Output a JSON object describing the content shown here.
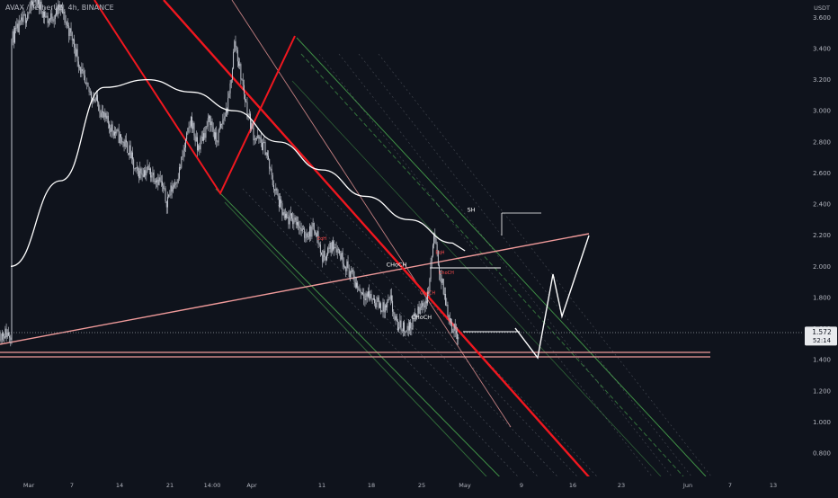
{
  "header": {
    "symbol_line": "AVAX / TetherUS, 4h, BINANCE"
  },
  "colors": {
    "background": "#0f131c",
    "candle": "#c9cdd6",
    "sma": "#ffffff",
    "red_trendline": "#f0171f",
    "pink_line": "#ef9a9a",
    "green_channel": "#4caf50",
    "axis_text": "#b2b5be",
    "price_tag_bg": "#e8eaed",
    "price_tag_text": "#131722"
  },
  "chart_data": {
    "type": "candlestick",
    "title": "AVAX / TetherUS, 4h, BINANCE",
    "currency": "USDT",
    "ylim": [
      0.65,
      3.72
    ],
    "y_ticks": [
      "3.600",
      "3.400",
      "3.200",
      "3.000",
      "2.800",
      "2.600",
      "2.400",
      "2.200",
      "2.000",
      "1.800",
      "1.600",
      "1.400",
      "1.200",
      "1.000",
      "0.800"
    ],
    "x_ticks": [
      "Mar",
      "7",
      "14",
      "21",
      "14:00",
      "Apr",
      "11",
      "18",
      "25",
      "May",
      "9",
      "16",
      "23",
      "Jun",
      "7",
      "13"
    ],
    "last_price": "1.572",
    "countdown": "52:14",
    "grid": false,
    "price_path": [
      [
        "Feb 28",
        3.45
      ],
      [
        "Mar 1",
        3.58
      ],
      [
        "Mar 3",
        3.72
      ],
      [
        "Mar 5",
        3.58
      ],
      [
        "Mar 7",
        3.66
      ],
      [
        "Mar 9",
        3.45
      ],
      [
        "Mar 11",
        3.15
      ],
      [
        "Mar 13",
        3.05
      ],
      [
        "Mar 14",
        2.95
      ],
      [
        "Mar 16",
        2.85
      ],
      [
        "Mar 18",
        2.75
      ],
      [
        "Mar 19",
        2.6
      ],
      [
        "Mar 21",
        2.62
      ],
      [
        "Mar 23",
        2.55
      ],
      [
        "Mar 24",
        2.42
      ],
      [
        "Mar 26",
        2.6
      ],
      [
        "Mar 28",
        2.95
      ],
      [
        "Mar 29",
        2.75
      ],
      [
        "Mar 31",
        2.95
      ],
      [
        "Apr 1",
        2.8
      ],
      [
        "Apr 3",
        3.05
      ],
      [
        "Apr 4",
        3.45
      ],
      [
        "Apr 6",
        3.0
      ],
      [
        "Apr 7",
        2.85
      ],
      [
        "Apr 9",
        2.75
      ],
      [
        "Apr 10",
        2.55
      ],
      [
        "Apr 12",
        2.3
      ],
      [
        "Apr 14",
        2.3
      ],
      [
        "Apr 15",
        2.2
      ],
      [
        "Apr 17",
        2.25
      ],
      [
        "Apr 18",
        2.05
      ],
      [
        "Apr 20",
        2.15
      ],
      [
        "Apr 22",
        2.0
      ],
      [
        "Apr 24",
        1.85
      ],
      [
        "Apr 26",
        1.8
      ],
      [
        "Apr 28",
        1.72
      ],
      [
        "Apr 29",
        1.78
      ],
      [
        "Apr 30",
        1.62
      ],
      [
        "May 2",
        1.6
      ],
      [
        "May 3",
        1.68
      ],
      [
        "May 5",
        1.8
      ],
      [
        "May 6",
        2.2
      ],
      [
        "May 7",
        1.95
      ],
      [
        "May 8",
        1.75
      ],
      [
        "May 9",
        1.6
      ],
      [
        "May 10",
        1.57
      ]
    ],
    "sma_path": [
      [
        "Feb 28",
        2.0
      ],
      [
        "Mar 7",
        2.55
      ],
      [
        "Mar 14",
        3.15
      ],
      [
        "Mar 21",
        3.2
      ],
      [
        "Mar 28",
        3.12
      ],
      [
        "Apr 4",
        3.0
      ],
      [
        "Apr 11",
        2.8
      ],
      [
        "Apr 18",
        2.62
      ],
      [
        "Apr 25",
        2.45
      ],
      [
        "May 2",
        2.3
      ],
      [
        "May 9",
        2.15
      ]
    ],
    "annotations": [
      {
        "text": "SH",
        "date": "May 12",
        "price": 2.35
      },
      {
        "text": "CHoCH",
        "date": "Apr 30",
        "price": 2.0
      },
      {
        "text": "CHoCH",
        "date": "May 4",
        "price": 1.66
      },
      {
        "text": "EqH",
        "date": "Apr 18",
        "price": 2.17
      },
      {
        "text": "EqH",
        "date": "May 7",
        "price": 2.08
      },
      {
        "text": "ChoCH",
        "date": "May 8",
        "price": 1.95
      },
      {
        "text": "ChoCH",
        "date": "May 5",
        "price": 1.82
      }
    ]
  }
}
